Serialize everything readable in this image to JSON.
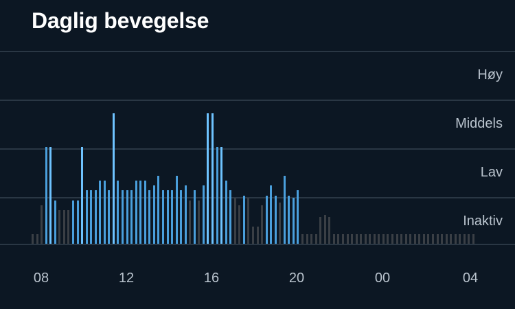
{
  "title": "Daglig bevegelse",
  "colors": {
    "background": "#0c1723",
    "active_light": "#6ec3ff",
    "active_mid": "#4a9fdc",
    "inactive": "#3a3f45"
  },
  "chart_data": {
    "type": "bar",
    "levels": [
      "Inaktiv",
      "Lav",
      "Middels",
      "Høy"
    ],
    "x_tick_labels": [
      "08",
      "12",
      "16",
      "20",
      "00",
      "04"
    ],
    "x_start_hour": 7.5,
    "x_step_hours": 0.1667,
    "values": [
      {
        "level": 0.2,
        "cat": "inactive"
      },
      {
        "level": 0.2,
        "cat": "inactive"
      },
      {
        "level": 0.8,
        "cat": "inactive"
      },
      {
        "level": 2.0,
        "cat": "mid"
      },
      {
        "level": 2.0,
        "cat": "light"
      },
      {
        "level": 0.9,
        "cat": "mid"
      },
      {
        "level": 0.7,
        "cat": "inactive"
      },
      {
        "level": 0.7,
        "cat": "inactive"
      },
      {
        "level": 0.7,
        "cat": "inactive"
      },
      {
        "level": 0.9,
        "cat": "mid"
      },
      {
        "level": 0.9,
        "cat": "mid"
      },
      {
        "level": 2.0,
        "cat": "light"
      },
      {
        "level": 1.1,
        "cat": "mid"
      },
      {
        "level": 1.1,
        "cat": "mid"
      },
      {
        "level": 1.1,
        "cat": "mid"
      },
      {
        "level": 1.3,
        "cat": "mid"
      },
      {
        "level": 1.3,
        "cat": "mid"
      },
      {
        "level": 1.1,
        "cat": "mid"
      },
      {
        "level": 2.7,
        "cat": "light"
      },
      {
        "level": 1.3,
        "cat": "mid"
      },
      {
        "level": 1.1,
        "cat": "mid"
      },
      {
        "level": 1.1,
        "cat": "mid"
      },
      {
        "level": 1.1,
        "cat": "mid"
      },
      {
        "level": 1.3,
        "cat": "mid"
      },
      {
        "level": 1.3,
        "cat": "mid"
      },
      {
        "level": 1.3,
        "cat": "mid"
      },
      {
        "level": 1.1,
        "cat": "mid"
      },
      {
        "level": 1.2,
        "cat": "mid"
      },
      {
        "level": 1.4,
        "cat": "mid"
      },
      {
        "level": 1.1,
        "cat": "mid"
      },
      {
        "level": 1.1,
        "cat": "mid"
      },
      {
        "level": 1.1,
        "cat": "mid"
      },
      {
        "level": 1.4,
        "cat": "mid"
      },
      {
        "level": 1.1,
        "cat": "mid"
      },
      {
        "level": 1.2,
        "cat": "mid"
      },
      {
        "level": 0.9,
        "cat": "inactive"
      },
      {
        "level": 1.1,
        "cat": "mid"
      },
      {
        "level": 0.9,
        "cat": "inactive"
      },
      {
        "level": 1.2,
        "cat": "mid"
      },
      {
        "level": 2.7,
        "cat": "light"
      },
      {
        "level": 2.7,
        "cat": "light"
      },
      {
        "level": 2.0,
        "cat": "mid"
      },
      {
        "level": 2.0,
        "cat": "light"
      },
      {
        "level": 1.3,
        "cat": "mid"
      },
      {
        "level": 1.1,
        "cat": "mid"
      },
      {
        "level": 0.95,
        "cat": "inactive"
      },
      {
        "level": 0.8,
        "cat": "inactive"
      },
      {
        "level": 1.0,
        "cat": "mid"
      },
      {
        "level": 0.95,
        "cat": "inactive"
      },
      {
        "level": 0.35,
        "cat": "inactive"
      },
      {
        "level": 0.35,
        "cat": "inactive"
      },
      {
        "level": 0.8,
        "cat": "inactive"
      },
      {
        "level": 1.0,
        "cat": "mid"
      },
      {
        "level": 1.2,
        "cat": "mid"
      },
      {
        "level": 1.0,
        "cat": "mid"
      },
      {
        "level": 0.85,
        "cat": "inactive"
      },
      {
        "level": 1.4,
        "cat": "mid"
      },
      {
        "level": 1.0,
        "cat": "mid"
      },
      {
        "level": 0.95,
        "cat": "mid"
      },
      {
        "level": 1.1,
        "cat": "mid"
      },
      {
        "level": 0.2,
        "cat": "inactive"
      },
      {
        "level": 0.2,
        "cat": "inactive"
      },
      {
        "level": 0.2,
        "cat": "inactive"
      },
      {
        "level": 0.2,
        "cat": "inactive"
      },
      {
        "level": 0.55,
        "cat": "inactive"
      },
      {
        "level": 0.6,
        "cat": "inactive"
      },
      {
        "level": 0.55,
        "cat": "inactive"
      },
      {
        "level": 0.2,
        "cat": "inactive"
      },
      {
        "level": 0.2,
        "cat": "inactive"
      },
      {
        "level": 0.2,
        "cat": "inactive"
      },
      {
        "level": 0.2,
        "cat": "inactive"
      },
      {
        "level": 0.2,
        "cat": "inactive"
      },
      {
        "level": 0.2,
        "cat": "inactive"
      },
      {
        "level": 0.2,
        "cat": "inactive"
      },
      {
        "level": 0.2,
        "cat": "inactive"
      },
      {
        "level": 0.2,
        "cat": "inactive"
      },
      {
        "level": 0.2,
        "cat": "inactive"
      },
      {
        "level": 0.2,
        "cat": "inactive"
      },
      {
        "level": 0.2,
        "cat": "inactive"
      },
      {
        "level": 0.2,
        "cat": "inactive"
      },
      {
        "level": 0.2,
        "cat": "inactive"
      },
      {
        "level": 0.2,
        "cat": "inactive"
      },
      {
        "level": 0.2,
        "cat": "inactive"
      },
      {
        "level": 0.2,
        "cat": "inactive"
      },
      {
        "level": 0.2,
        "cat": "inactive"
      },
      {
        "level": 0.2,
        "cat": "inactive"
      },
      {
        "level": 0.2,
        "cat": "inactive"
      },
      {
        "level": 0.2,
        "cat": "inactive"
      },
      {
        "level": 0.2,
        "cat": "inactive"
      },
      {
        "level": 0.2,
        "cat": "inactive"
      },
      {
        "level": 0.2,
        "cat": "inactive"
      },
      {
        "level": 0.2,
        "cat": "inactive"
      },
      {
        "level": 0.2,
        "cat": "inactive"
      },
      {
        "level": 0.2,
        "cat": "inactive"
      },
      {
        "level": 0.2,
        "cat": "inactive"
      },
      {
        "level": 0.2,
        "cat": "inactive"
      },
      {
        "level": 0.2,
        "cat": "inactive"
      },
      {
        "level": 0.2,
        "cat": "inactive"
      },
      {
        "level": 0.2,
        "cat": "inactive"
      }
    ]
  }
}
